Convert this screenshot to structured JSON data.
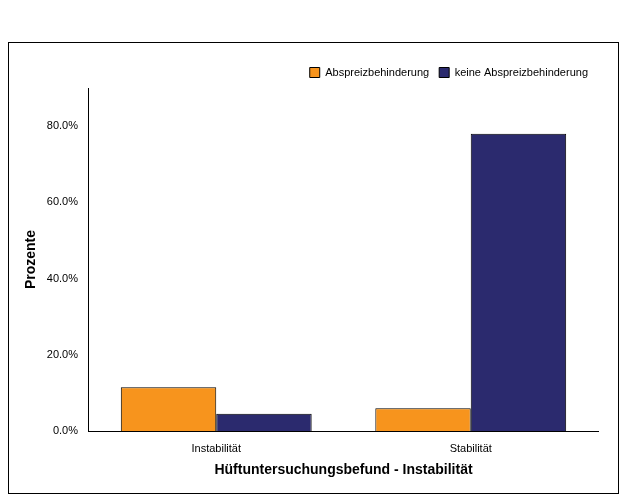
{
  "chart_data": {
    "type": "bar",
    "categories": [
      "Instabilität",
      "Stabilität"
    ],
    "series": [
      {
        "name": "Abspreizbehinderung",
        "color": "#f7941d",
        "values": [
          11.5,
          6
        ]
      },
      {
        "name": "keine Abspreizbehinderung",
        "color": "#2b2a6e",
        "values": [
          4.5,
          78
        ]
      }
    ],
    "x_label": "Hüftuntersuchungsbefund - Instabilität",
    "y_label": "Prozente",
    "ylim": [
      0,
      90
    ],
    "yticks": [
      {
        "value": 0,
        "label": "0.0%"
      },
      {
        "value": 20,
        "label": "20.0%"
      },
      {
        "value": 40,
        "label": "40.0%"
      },
      {
        "value": 60,
        "label": "60.0%"
      },
      {
        "value": 80,
        "label": "80.0%"
      }
    ],
    "grid": false,
    "legend": "upper right"
  }
}
